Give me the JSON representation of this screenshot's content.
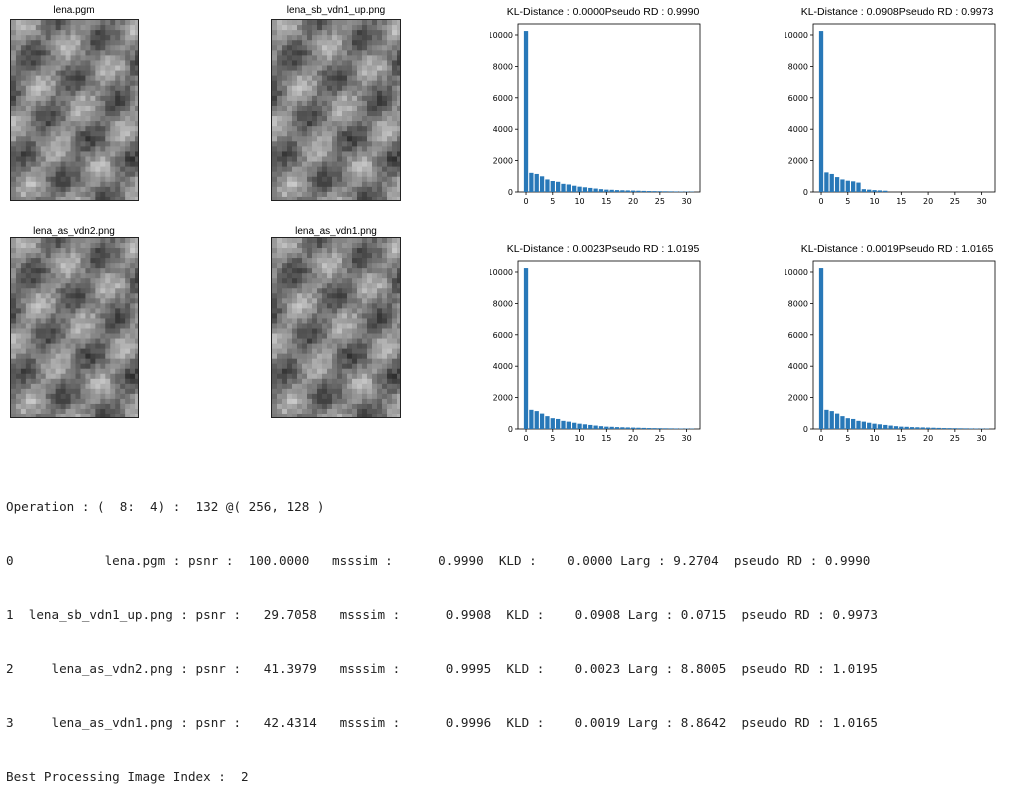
{
  "images": [
    {
      "title": "lena.pgm",
      "seed": 11
    },
    {
      "title": "lena_sb_vdn1_up.png",
      "seed": 11
    },
    {
      "title": "lena_as_vdn2.png",
      "seed": 11
    },
    {
      "title": "lena_as_vdn1.png",
      "seed": 11
    }
  ],
  "chart_data": [
    {
      "type": "bar",
      "title": "KL-Distance : 0.0000Pseudo RD : 0.9990",
      "x": [
        0,
        1,
        2,
        3,
        4,
        5,
        6,
        7,
        8,
        9,
        10,
        11,
        12,
        13,
        14,
        15,
        16,
        17,
        18,
        19,
        20,
        21,
        22,
        23,
        24,
        25,
        26,
        27,
        28,
        29,
        30,
        31
      ],
      "values": [
        10250,
        1220,
        1150,
        1000,
        800,
        700,
        650,
        520,
        480,
        400,
        340,
        300,
        260,
        220,
        180,
        150,
        140,
        120,
        110,
        100,
        90,
        80,
        70,
        60,
        55,
        50,
        45,
        40,
        35,
        30,
        28,
        25
      ],
      "xticks": [
        0,
        5,
        10,
        15,
        20,
        25,
        30
      ],
      "yticks": [
        0,
        2000,
        4000,
        6000,
        8000,
        10000
      ],
      "ylim": [
        0,
        10700
      ],
      "color": "#2878b8"
    },
    {
      "type": "bar",
      "title": "KL-Distance : 0.0908Pseudo RD : 0.9973",
      "x": [
        0,
        1,
        2,
        3,
        4,
        5,
        6,
        7,
        8,
        9,
        10,
        11,
        12,
        13,
        14,
        15,
        16,
        17,
        18,
        19,
        20,
        21,
        22,
        23,
        24,
        25,
        26,
        27,
        28,
        29,
        30,
        31
      ],
      "values": [
        10250,
        1250,
        1150,
        950,
        800,
        720,
        680,
        600,
        180,
        150,
        120,
        100,
        80,
        0,
        0,
        0,
        0,
        0,
        0,
        0,
        0,
        0,
        0,
        0,
        0,
        0,
        0,
        0,
        0,
        0,
        0,
        0
      ],
      "xticks": [
        0,
        5,
        10,
        15,
        20,
        25,
        30
      ],
      "yticks": [
        0,
        2000,
        4000,
        6000,
        8000,
        10000
      ],
      "ylim": [
        0,
        10700
      ],
      "color": "#2878b8"
    },
    {
      "type": "bar",
      "title": "KL-Distance : 0.0023Pseudo RD : 1.0195",
      "x": [
        0,
        1,
        2,
        3,
        4,
        5,
        6,
        7,
        8,
        9,
        10,
        11,
        12,
        13,
        14,
        15,
        16,
        17,
        18,
        19,
        20,
        21,
        22,
        23,
        24,
        25,
        26,
        27,
        28,
        29,
        30,
        31
      ],
      "values": [
        10250,
        1220,
        1140,
        980,
        820,
        690,
        640,
        520,
        470,
        400,
        340,
        300,
        260,
        220,
        180,
        150,
        140,
        120,
        110,
        100,
        90,
        80,
        70,
        60,
        55,
        50,
        45,
        40,
        35,
        30,
        28,
        25
      ],
      "xticks": [
        0,
        5,
        10,
        15,
        20,
        25,
        30
      ],
      "yticks": [
        0,
        2000,
        4000,
        6000,
        8000,
        10000
      ],
      "ylim": [
        0,
        10700
      ],
      "color": "#2878b8"
    },
    {
      "type": "bar",
      "title": "KL-Distance : 0.0019Pseudo RD : 1.0165",
      "x": [
        0,
        1,
        2,
        3,
        4,
        5,
        6,
        7,
        8,
        9,
        10,
        11,
        12,
        13,
        14,
        15,
        16,
        17,
        18,
        19,
        20,
        21,
        22,
        23,
        24,
        25,
        26,
        27,
        28,
        29,
        30,
        31
      ],
      "values": [
        10250,
        1220,
        1140,
        980,
        820,
        690,
        640,
        520,
        470,
        400,
        340,
        300,
        260,
        220,
        180,
        150,
        140,
        120,
        110,
        100,
        90,
        80,
        70,
        60,
        55,
        50,
        45,
        40,
        35,
        30,
        28,
        25
      ],
      "xticks": [
        0,
        5,
        10,
        15,
        20,
        25,
        30
      ],
      "yticks": [
        0,
        2000,
        4000,
        6000,
        8000,
        10000
      ],
      "ylim": [
        0,
        10700
      ],
      "color": "#2878b8"
    }
  ],
  "console": {
    "lines": [
      "Operation : (  8:  4) :  132 @( 256, 128 )",
      "0            lena.pgm : psnr :  100.0000   msssim :      0.9990  KLD :    0.0000 Larg : 9.2704  pseudo RD : 0.9990",
      "1  lena_sb_vdn1_up.png : psnr :   29.7058   msssim :      0.9908  KLD :    0.0908 Larg : 0.0715  pseudo RD : 0.9973",
      "2     lena_as_vdn2.png : psnr :   41.3979   msssim :      0.9995  KLD :    0.0023 Larg : 8.8005  pseudo RD : 1.0195",
      "3     lena_as_vdn1.png : psnr :   42.4314   msssim :      0.9996  KLD :    0.0019 Larg : 8.8642  pseudo RD : 1.0165",
      "Best Processing Image Index :  2"
    ]
  }
}
